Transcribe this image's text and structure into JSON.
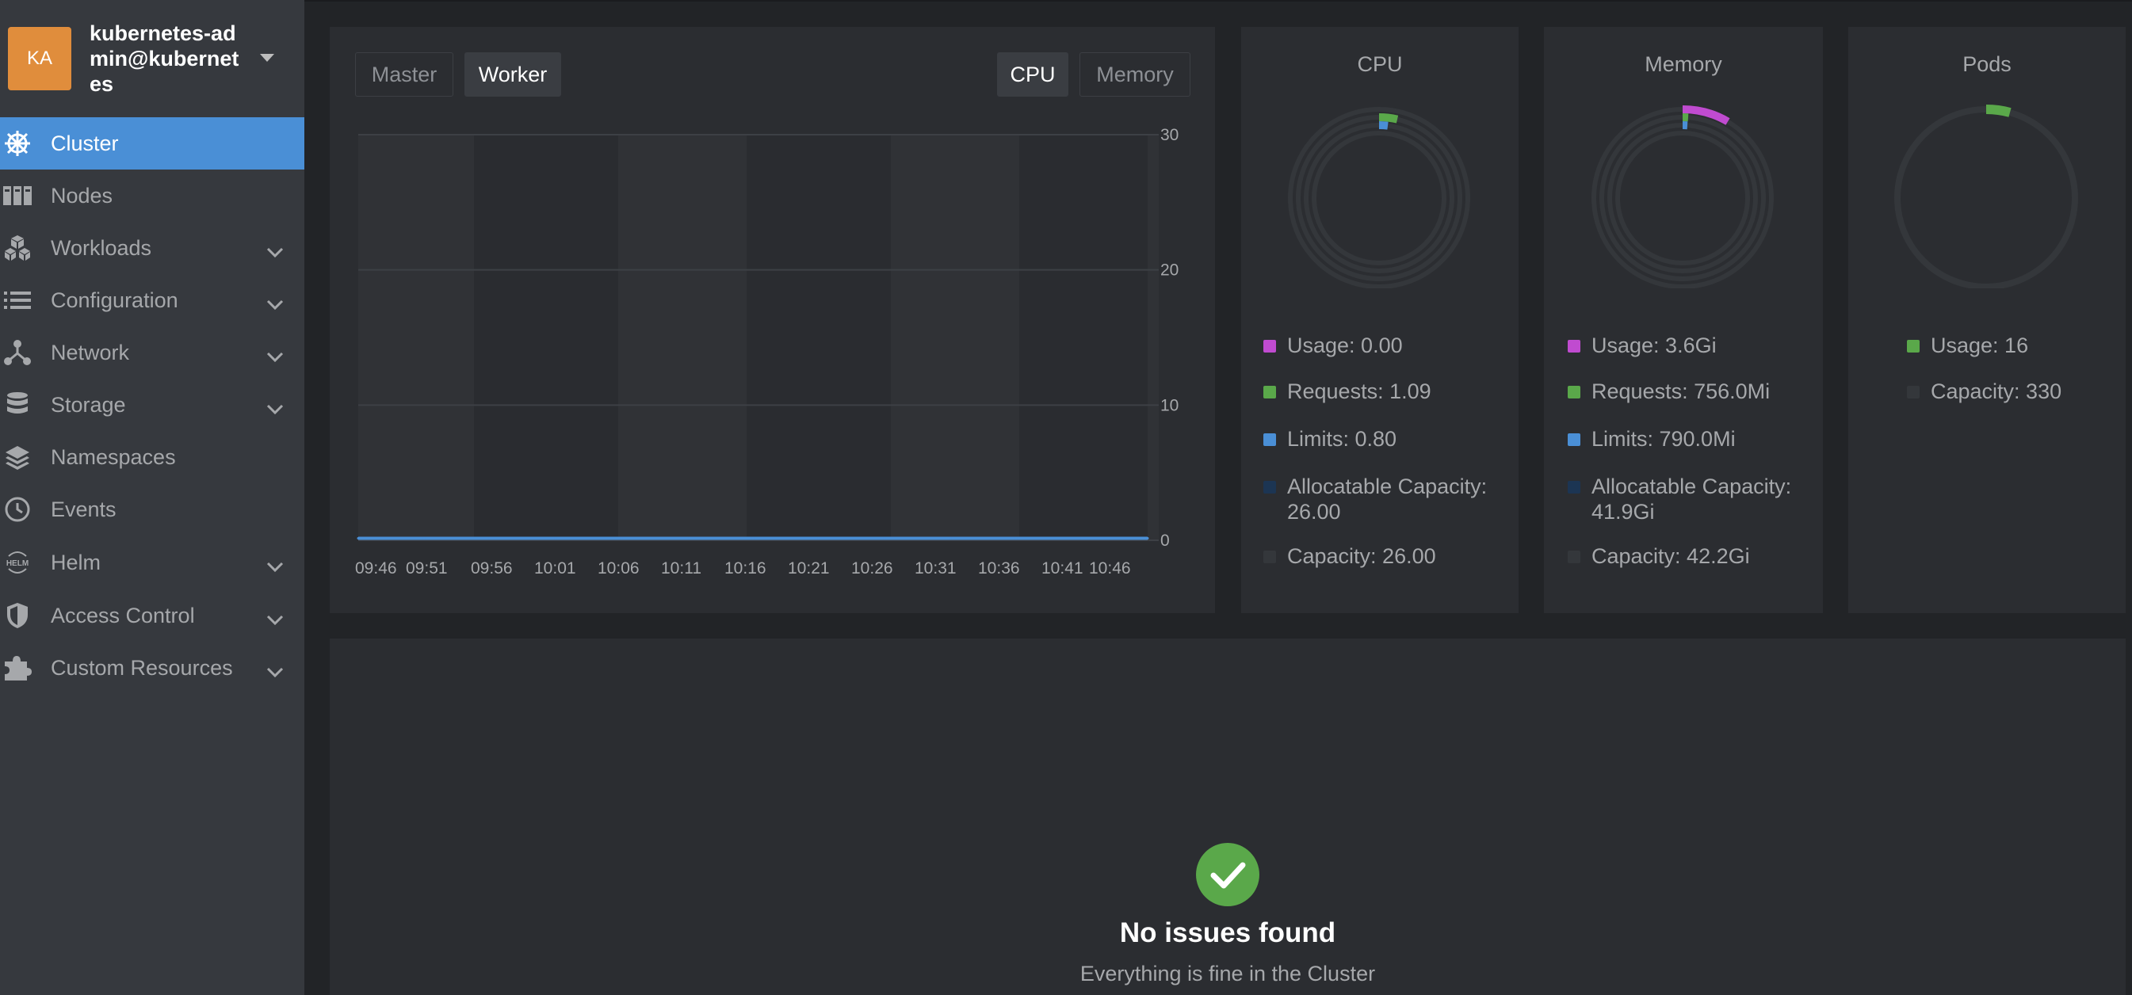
{
  "cluster": {
    "avatar": "KA",
    "name": "kubernetes-admin@kubernetes"
  },
  "sidebar": {
    "items": [
      {
        "label": "Cluster",
        "icon": "helm-wheel-icon",
        "active": true,
        "expandable": false
      },
      {
        "label": "Nodes",
        "icon": "nodes-icon",
        "active": false,
        "expandable": false
      },
      {
        "label": "Workloads",
        "icon": "cubes-icon",
        "active": false,
        "expandable": true
      },
      {
        "label": "Configuration",
        "icon": "list-icon",
        "active": false,
        "expandable": true
      },
      {
        "label": "Network",
        "icon": "network-icon",
        "active": false,
        "expandable": true
      },
      {
        "label": "Storage",
        "icon": "database-icon",
        "active": false,
        "expandable": true
      },
      {
        "label": "Namespaces",
        "icon": "layers-icon",
        "active": false,
        "expandable": false
      },
      {
        "label": "Events",
        "icon": "clock-icon",
        "active": false,
        "expandable": false
      },
      {
        "label": "Helm",
        "icon": "helm-icon",
        "active": false,
        "expandable": true
      },
      {
        "label": "Access Control",
        "icon": "shield-icon",
        "active": false,
        "expandable": true
      },
      {
        "label": "Custom Resources",
        "icon": "puzzle-icon",
        "active": false,
        "expandable": true
      }
    ]
  },
  "metrics": {
    "tabs": {
      "master": "Master",
      "worker": "Worker",
      "cpu": "CPU",
      "memory": "Memory"
    },
    "selected_node_tab": "Worker",
    "selected_metric_tab": "CPU"
  },
  "chart_data": {
    "type": "area",
    "x": [
      "09:46",
      "09:51",
      "09:56",
      "10:01",
      "10:06",
      "10:11",
      "10:16",
      "10:21",
      "10:26",
      "10:31",
      "10:36",
      "10:41",
      "10:46"
    ],
    "series": [
      {
        "values": [
          0.15,
          0.15,
          0.15,
          0.15,
          0.15,
          0.15,
          0.15,
          0.15,
          0.15,
          0.15,
          0.15,
          0.15,
          0.15
        ],
        "color": "#4a8fd6"
      }
    ],
    "yticks": [
      "30",
      "20",
      "10",
      "0"
    ],
    "ylim": [
      0,
      30
    ],
    "grid": true
  },
  "donuts": {
    "cpu": {
      "title": "CPU",
      "legend": [
        {
          "label": "Usage: 0.00",
          "color": "#c04bd0"
        },
        {
          "label": "Requests: 1.09",
          "color": "#5aa84a"
        },
        {
          "label": "Limits: 0.80",
          "color": "#4a8fd6"
        },
        {
          "label": "Allocatable Capacity: 26.00",
          "color": "#1c3553"
        },
        {
          "label": "Capacity: 26.00",
          "color": "#34373b"
        }
      ]
    },
    "memory": {
      "title": "Memory",
      "legend": [
        {
          "label": "Usage: 3.6Gi",
          "color": "#c04bd0"
        },
        {
          "label": "Requests: 756.0Mi",
          "color": "#5aa84a"
        },
        {
          "label": "Limits: 790.0Mi",
          "color": "#4a8fd6"
        },
        {
          "label": "Allocatable Capacity: 41.9Gi",
          "color": "#1c3553"
        },
        {
          "label": "Capacity: 42.2Gi",
          "color": "#34373b"
        }
      ]
    },
    "pods": {
      "title": "Pods",
      "legend": [
        {
          "label": "Usage: 16",
          "color": "#5aa84a"
        },
        {
          "label": "Capacity: 330",
          "color": "#34373b"
        }
      ]
    }
  },
  "issues": {
    "title": "No issues found",
    "subtitle": "Everything is fine in the Cluster",
    "check_color": "#5aa84a"
  }
}
